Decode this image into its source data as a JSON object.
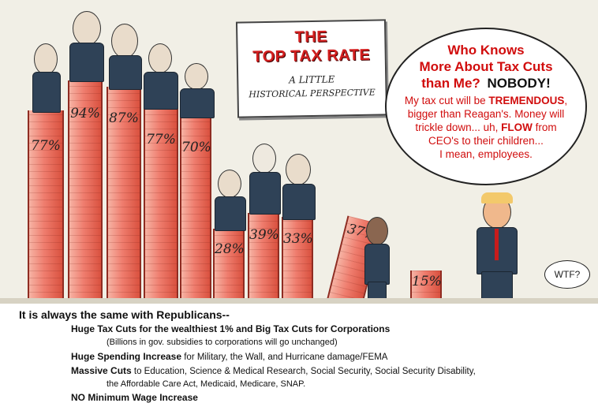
{
  "cartoon": {
    "sign_title_line1": "THE",
    "sign_title_line2": "TOP TAX RATE",
    "sign_subtitle_line1": "A LITTLE",
    "sign_subtitle_line2": "HISTORICAL PERSPECTIVE",
    "bars": [
      {
        "label": "77%",
        "rate": 77
      },
      {
        "label": "94%",
        "rate": 94
      },
      {
        "label": "87%",
        "rate": 87
      },
      {
        "label": "77%",
        "rate": 77
      },
      {
        "label": "70%",
        "rate": 70
      },
      {
        "label": "28%",
        "rate": 28
      },
      {
        "label": "39%",
        "rate": 39
      },
      {
        "label": "33%",
        "rate": 33
      },
      {
        "label": "37%",
        "rate": 37
      },
      {
        "label": "15%",
        "rate": 15
      }
    ],
    "speech_bubble": {
      "heading_line1": "Who Knows",
      "heading_line2": "More About Tax Cuts",
      "heading_line3a": "than Me?",
      "heading_line3b": "NOBODY!",
      "body_1a": "My tax cut will be ",
      "body_1b": "TREMENDOUS",
      "body_1c": ",",
      "body_2": "bigger than Reagan's.  Money will",
      "body_3a": "trickle down... uh, ",
      "body_3b": "FLOW",
      "body_3c": " from",
      "body_4": "CEO's to their children...",
      "body_5": "I mean, employees."
    },
    "wtf_bubble": "WTF?"
  },
  "caption": {
    "heading": "It is always the same with Republicans--",
    "line1": "Huge Tax Cuts for the wealthiest 1% and Big Tax Cuts for Corporations",
    "line1_sub": "(Billions in gov.  subsidies to corporations will go unchanged)",
    "line2_bold": "Huge Spending Increase",
    "line2_rest": " for Military, the Wall, and Hurricane damage/FEMA",
    "line3_bold": "Massive Cuts",
    "line3_rest": " to Education, Science & Medical Research, Social Security, Social Security Disability,",
    "line3_cont": "the Affordable Care Act, Medicaid, Medicare, SNAP.",
    "line4": "NO Minimum Wage Increase"
  }
}
